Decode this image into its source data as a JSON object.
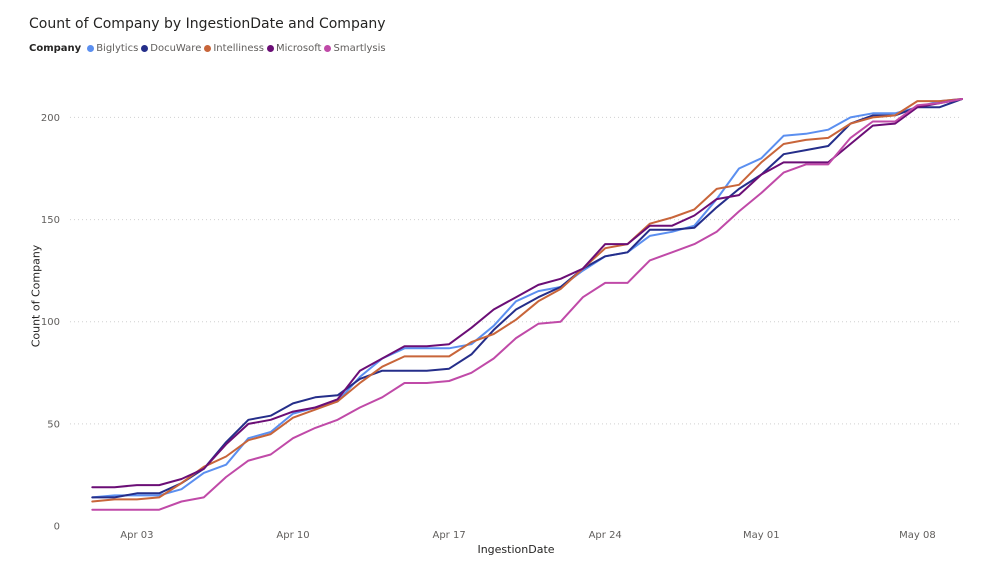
{
  "chart_data": {
    "type": "line",
    "title": "Count of Company by IngestionDate and Company",
    "xlabel": "IngestionDate",
    "ylabel": "Count of Company",
    "legend_title": "Company",
    "legend_position": "top-left",
    "grid": "horizontal dotted",
    "xlim": [
      "2024-03-31",
      "2024-05-10"
    ],
    "ylim": [
      0,
      210
    ],
    "x_ticks": [
      {
        "date": "2024-04-03",
        "label": "Apr 03"
      },
      {
        "date": "2024-04-10",
        "label": "Apr 10"
      },
      {
        "date": "2024-04-17",
        "label": "Apr 17"
      },
      {
        "date": "2024-04-24",
        "label": "Apr 24"
      },
      {
        "date": "2024-05-01",
        "label": "May 01"
      },
      {
        "date": "2024-05-08",
        "label": "May 08"
      }
    ],
    "y_ticks": [
      0,
      50,
      100,
      150,
      200
    ],
    "x": [
      "2024-04-01",
      "2024-04-02",
      "2024-04-03",
      "2024-04-04",
      "2024-04-05",
      "2024-04-06",
      "2024-04-07",
      "2024-04-08",
      "2024-04-09",
      "2024-04-10",
      "2024-04-11",
      "2024-04-12",
      "2024-04-13",
      "2024-04-14",
      "2024-04-15",
      "2024-04-16",
      "2024-04-17",
      "2024-04-18",
      "2024-04-19",
      "2024-04-20",
      "2024-04-21",
      "2024-04-22",
      "2024-04-23",
      "2024-04-24",
      "2024-04-25",
      "2024-04-26",
      "2024-04-27",
      "2024-04-28",
      "2024-04-29",
      "2024-04-30",
      "2024-05-01",
      "2024-05-02",
      "2024-05-03",
      "2024-05-04",
      "2024-05-05",
      "2024-05-06",
      "2024-05-07",
      "2024-05-08",
      "2024-05-09",
      "2024-05-10"
    ],
    "series": [
      {
        "name": "Biglytics",
        "color": "#5b8ff0",
        "values": [
          14,
          15,
          15,
          15,
          18,
          26,
          30,
          43,
          46,
          55,
          58,
          61,
          73,
          82,
          87,
          87,
          87,
          89,
          98,
          110,
          115,
          117,
          125,
          132,
          134,
          142,
          144,
          147,
          160,
          175,
          180,
          191,
          192,
          194,
          200,
          202,
          202,
          205,
          208,
          209
        ]
      },
      {
        "name": "DocuWare",
        "color": "#252e8a",
        "values": [
          14,
          14,
          16,
          16,
          21,
          28,
          41,
          52,
          54,
          60,
          63,
          64,
          72,
          76,
          76,
          76,
          77,
          84,
          96,
          106,
          112,
          117,
          126,
          132,
          134,
          145,
          145,
          146,
          156,
          165,
          172,
          182,
          184,
          186,
          197,
          201,
          201,
          205,
          205,
          209
        ]
      },
      {
        "name": "Intelliness",
        "color": "#c8653a",
        "values": [
          12,
          13,
          13,
          14,
          21,
          29,
          34,
          42,
          45,
          53,
          57,
          61,
          70,
          78,
          83,
          83,
          83,
          90,
          94,
          101,
          110,
          116,
          126,
          136,
          138,
          148,
          151,
          155,
          165,
          167,
          178,
          187,
          189,
          190,
          197,
          200,
          201,
          208,
          208,
          209
        ]
      },
      {
        "name": "Microsoft",
        "color": "#6b0e76",
        "values": [
          19,
          19,
          20,
          20,
          23,
          28,
          40,
          50,
          52,
          56,
          58,
          62,
          76,
          82,
          88,
          88,
          89,
          97,
          106,
          112,
          118,
          121,
          126,
          138,
          138,
          147,
          147,
          152,
          160,
          162,
          172,
          178,
          178,
          178,
          187,
          196,
          197,
          205,
          207,
          209
        ]
      },
      {
        "name": "Smartlysis",
        "color": "#c04aa8",
        "values": [
          8,
          8,
          8,
          8,
          12,
          14,
          24,
          32,
          35,
          43,
          48,
          52,
          58,
          63,
          70,
          70,
          71,
          75,
          82,
          92,
          99,
          100,
          112,
          119,
          119,
          130,
          134,
          138,
          144,
          154,
          163,
          173,
          177,
          177,
          190,
          198,
          198,
          206,
          207,
          209
        ]
      }
    ]
  }
}
